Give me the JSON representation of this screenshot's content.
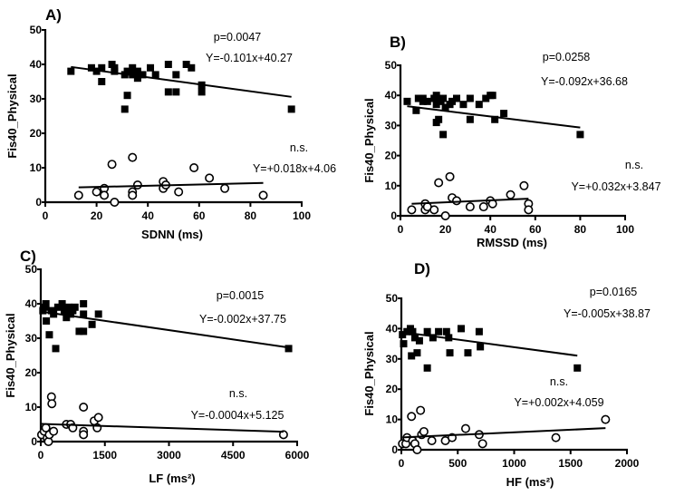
{
  "chart_data": [
    {
      "type": "scatter",
      "title": "A)",
      "xlabel": "SDNN (ms)",
      "ylabel": "Fis40_Physical",
      "xlim": [
        0,
        100
      ],
      "ylim": [
        0,
        50
      ],
      "xticks": [
        0,
        20,
        40,
        60,
        80,
        100
      ],
      "yticks": [
        0,
        10,
        20,
        30,
        40,
        50
      ],
      "series": [
        {
          "name": "filled squares",
          "marker": "square-filled",
          "annotation_p": "p=0.0047",
          "annotation_eq": "Y=-0.101x+40.27",
          "fit": {
            "slope": -0.101,
            "intercept": 40.27,
            "x_range": [
              10,
              96
            ]
          },
          "points": [
            [
              10,
              38
            ],
            [
              18,
              39
            ],
            [
              20,
              38
            ],
            [
              22,
              39
            ],
            [
              22,
              35
            ],
            [
              26,
              40
            ],
            [
              27,
              39
            ],
            [
              27,
              38
            ],
            [
              31,
              37
            ],
            [
              31,
              27
            ],
            [
              32,
              31
            ],
            [
              32,
              38
            ],
            [
              34,
              39
            ],
            [
              34,
              37
            ],
            [
              36,
              36
            ],
            [
              36,
              38
            ],
            [
              38,
              37
            ],
            [
              41,
              39
            ],
            [
              43,
              37
            ],
            [
              48,
              40
            ],
            [
              48,
              32
            ],
            [
              51,
              37
            ],
            [
              51,
              32
            ],
            [
              55,
              40
            ],
            [
              57,
              39
            ],
            [
              61,
              34
            ],
            [
              61,
              32
            ],
            [
              96,
              27
            ]
          ]
        },
        {
          "name": "open circles",
          "marker": "circle-open",
          "annotation_p": "n.s.",
          "annotation_eq": "Y=+0.018x+4.06",
          "fit": {
            "slope": 0.018,
            "intercept": 4.06,
            "x_range": [
              13,
              85
            ]
          },
          "points": [
            [
              13,
              2
            ],
            [
              20,
              3
            ],
            [
              23,
              4
            ],
            [
              23,
              2
            ],
            [
              26,
              11
            ],
            [
              27,
              0
            ],
            [
              34,
              13
            ],
            [
              34,
              3
            ],
            [
              34,
              2
            ],
            [
              36,
              5
            ],
            [
              46,
              6
            ],
            [
              46,
              4
            ],
            [
              47,
              5
            ],
            [
              52,
              3
            ],
            [
              58,
              10
            ],
            [
              64,
              7
            ],
            [
              70,
              4
            ],
            [
              85,
              2
            ]
          ]
        }
      ]
    },
    {
      "type": "scatter",
      "title": "B)",
      "xlabel": "RMSSD (ms)",
      "ylabel": "Fis40_Physical",
      "xlim": [
        0,
        100
      ],
      "ylim": [
        0,
        50
      ],
      "xticks": [
        0,
        20,
        40,
        60,
        80,
        100
      ],
      "yticks": [
        0,
        10,
        20,
        30,
        40,
        50
      ],
      "series": [
        {
          "name": "filled squares",
          "marker": "square-filled",
          "annotation_p": "p=0.0258",
          "annotation_eq": "Y=-0.092x+36.68",
          "fit": {
            "slope": -0.092,
            "intercept": 36.68,
            "x_range": [
              3,
              80
            ]
          },
          "points": [
            [
              3,
              38
            ],
            [
              7,
              35
            ],
            [
              8,
              39
            ],
            [
              10,
              38
            ],
            [
              10,
              39
            ],
            [
              12,
              38
            ],
            [
              15,
              39
            ],
            [
              16,
              40
            ],
            [
              16,
              37
            ],
            [
              16,
              31
            ],
            [
              17,
              32
            ],
            [
              18,
              38
            ],
            [
              19,
              39
            ],
            [
              19,
              27
            ],
            [
              20,
              36
            ],
            [
              22,
              37
            ],
            [
              23,
              38
            ],
            [
              25,
              39
            ],
            [
              28,
              37
            ],
            [
              31,
              39
            ],
            [
              31,
              32
            ],
            [
              35,
              37
            ],
            [
              38,
              39
            ],
            [
              40,
              40
            ],
            [
              41,
              40
            ],
            [
              42,
              32
            ],
            [
              46,
              34
            ],
            [
              80,
              27
            ]
          ]
        },
        {
          "name": "open circles",
          "marker": "circle-open",
          "annotation_p": "n.s.",
          "annotation_eq": "Y=+0.032x+3.847",
          "fit": {
            "slope": 0.032,
            "intercept": 3.847,
            "x_range": [
              5,
              57
            ]
          },
          "points": [
            [
              5,
              2
            ],
            [
              11,
              4
            ],
            [
              11,
              2
            ],
            [
              12,
              3
            ],
            [
              15,
              2
            ],
            [
              17,
              11
            ],
            [
              20,
              0
            ],
            [
              22,
              13
            ],
            [
              23,
              6
            ],
            [
              25,
              5
            ],
            [
              31,
              3
            ],
            [
              37,
              3
            ],
            [
              40,
              5
            ],
            [
              41,
              4
            ],
            [
              49,
              7
            ],
            [
              55,
              10
            ],
            [
              57,
              4
            ],
            [
              57,
              2
            ]
          ]
        }
      ]
    },
    {
      "type": "scatter",
      "title": "C)",
      "xlabel": "LF (ms²)",
      "ylabel": "Fis40_Physical",
      "xlim": [
        0,
        6000
      ],
      "ylim": [
        0,
        50
      ],
      "xticks": [
        0,
        1500,
        3000,
        4500,
        6000
      ],
      "yticks": [
        0,
        10,
        20,
        30,
        40,
        50
      ],
      "series": [
        {
          "name": "filled squares",
          "marker": "square-filled",
          "annotation_p": "p=0.0015",
          "annotation_eq": "Y=-0.002x+37.75",
          "fit": {
            "slope": -0.0018,
            "intercept": 37.75,
            "x_range": [
              50,
              5800
            ]
          },
          "points": [
            [
              50,
              38
            ],
            [
              100,
              39
            ],
            [
              120,
              40
            ],
            [
              130,
              35
            ],
            [
              200,
              31
            ],
            [
              250,
              38
            ],
            [
              300,
              37
            ],
            [
              350,
              27
            ],
            [
              400,
              39
            ],
            [
              500,
              40
            ],
            [
              550,
              38
            ],
            [
              600,
              36
            ],
            [
              650,
              39
            ],
            [
              700,
              37
            ],
            [
              750,
              38
            ],
            [
              800,
              39
            ],
            [
              900,
              32
            ],
            [
              1000,
              40
            ],
            [
              1000,
              37
            ],
            [
              1000,
              32
            ],
            [
              1200,
              34
            ],
            [
              1350,
              37
            ],
            [
              5800,
              27
            ]
          ]
        },
        {
          "name": "open circles",
          "marker": "circle-open",
          "annotation_p": "n.s.",
          "annotation_eq": "Y=-0.0004x+5.125",
          "fit": {
            "slope": -0.0004,
            "intercept": 5.125,
            "x_range": [
              20,
              5680
            ]
          },
          "points": [
            [
              20,
              2
            ],
            [
              80,
              3
            ],
            [
              120,
              4
            ],
            [
              150,
              1
            ],
            [
              180,
              0
            ],
            [
              200,
              2
            ],
            [
              250,
              13
            ],
            [
              260,
              11
            ],
            [
              300,
              3
            ],
            [
              600,
              5
            ],
            [
              700,
              5
            ],
            [
              750,
              4
            ],
            [
              1000,
              10
            ],
            [
              1000,
              3
            ],
            [
              1000,
              2
            ],
            [
              1250,
              6
            ],
            [
              1350,
              7
            ],
            [
              1320,
              4
            ],
            [
              5680,
              2
            ]
          ]
        }
      ]
    },
    {
      "type": "scatter",
      "title": "D)",
      "xlabel": "HF (ms²)",
      "ylabel": "Fis40_Physical",
      "xlim": [
        0,
        2000
      ],
      "ylim": [
        0,
        50
      ],
      "xticks": [
        0,
        500,
        1000,
        1500,
        2000
      ],
      "yticks": [
        0,
        10,
        20,
        30,
        40,
        50
      ],
      "series": [
        {
          "name": "filled squares",
          "marker": "square-filled",
          "annotation_p": "p=0.0165",
          "annotation_eq": "Y=-0.005x+38.87",
          "fit": {
            "slope": -0.005,
            "intercept": 38.87,
            "x_range": [
              10,
              1560
            ]
          },
          "points": [
            [
              10,
              38
            ],
            [
              20,
              35
            ],
            [
              50,
              39
            ],
            [
              80,
              40
            ],
            [
              90,
              31
            ],
            [
              100,
              39
            ],
            [
              120,
              37
            ],
            [
              140,
              32
            ],
            [
              160,
              36
            ],
            [
              230,
              27
            ],
            [
              230,
              39
            ],
            [
              280,
              37
            ],
            [
              330,
              39
            ],
            [
              400,
              39
            ],
            [
              420,
              37
            ],
            [
              430,
              32
            ],
            [
              530,
              40
            ],
            [
              590,
              32
            ],
            [
              690,
              39
            ],
            [
              700,
              34
            ],
            [
              1560,
              27
            ]
          ]
        },
        {
          "name": "open circles",
          "marker": "circle-open",
          "annotation_p": "n.s.",
          "annotation_eq": "Y=+0.002x+4.059",
          "fit": {
            "slope": 0.0017,
            "intercept": 4.059,
            "x_range": [
              10,
              1810
            ]
          },
          "points": [
            [
              10,
              2
            ],
            [
              40,
              2
            ],
            [
              50,
              4
            ],
            [
              90,
              11
            ],
            [
              100,
              3
            ],
            [
              120,
              2
            ],
            [
              140,
              0
            ],
            [
              170,
              13
            ],
            [
              180,
              5
            ],
            [
              200,
              6
            ],
            [
              270,
              3
            ],
            [
              390,
              3
            ],
            [
              450,
              4
            ],
            [
              570,
              7
            ],
            [
              690,
              5
            ],
            [
              720,
              2
            ],
            [
              1370,
              4
            ],
            [
              1810,
              10
            ]
          ]
        }
      ]
    }
  ]
}
